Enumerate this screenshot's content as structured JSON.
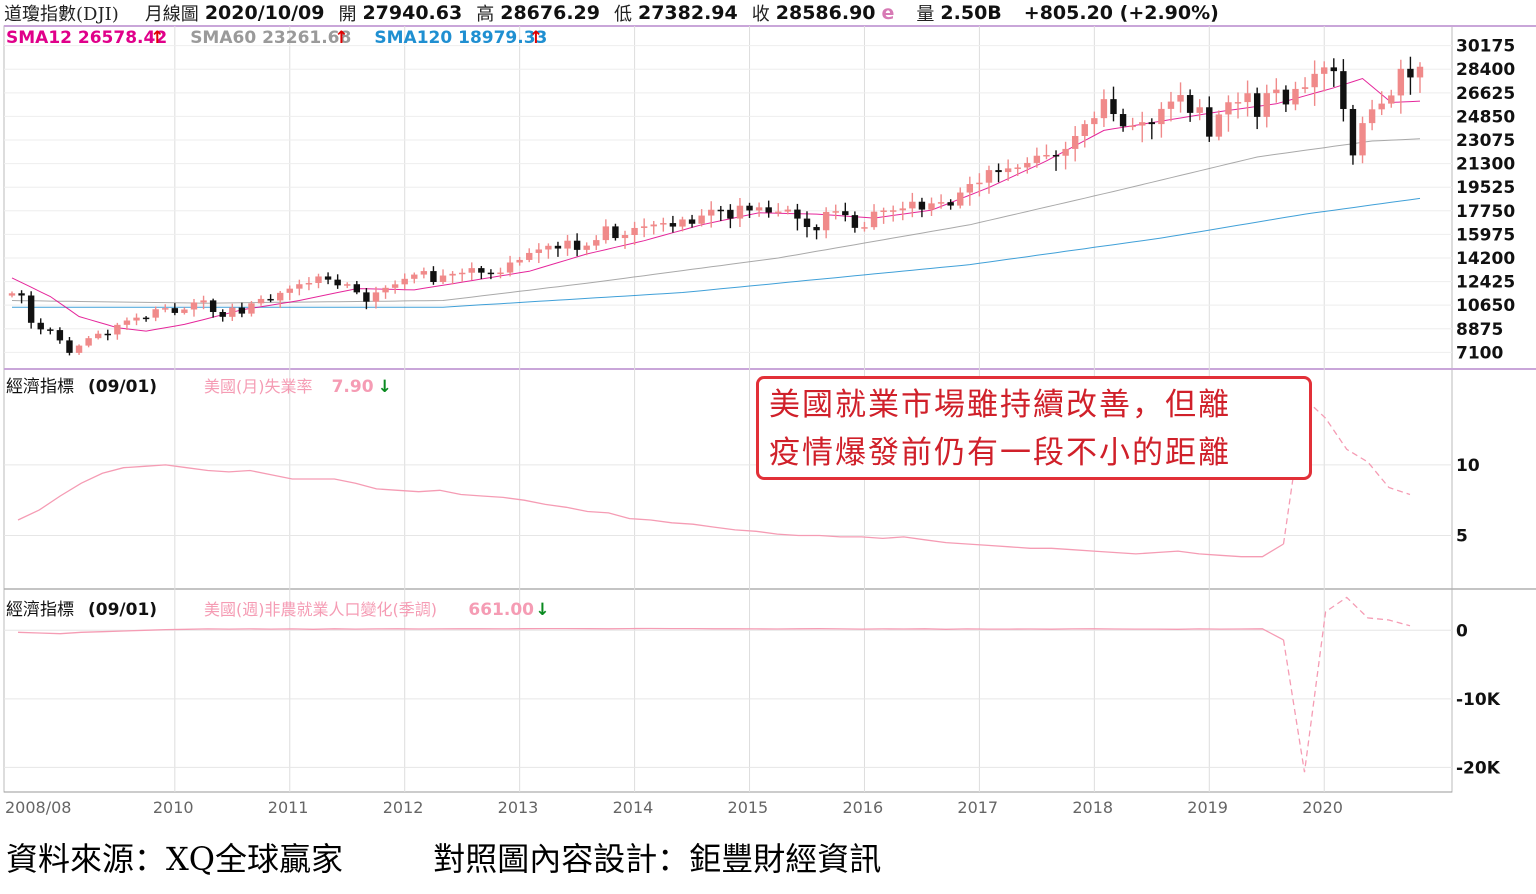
{
  "header": {
    "symbol": "道瓊指數(DJI)",
    "period": "月線圖",
    "date": "2020/10/09",
    "open_label": "開",
    "open": "27940.63",
    "high_label": "高",
    "high": "28676.29",
    "low_label": "低",
    "low": "27382.94",
    "close_label": "收",
    "close": "28586.90",
    "close_flag": "e",
    "volume_label": "量",
    "volume": "2.50B",
    "change": "+805.20 (+2.90%)"
  },
  "colors": {
    "sma12": "#e0008a",
    "sma60": "#9a9a9a",
    "sma120": "#1f8fd1",
    "candle_up": "#f08a8a",
    "candle_down": "#111111",
    "indicator": "#f59cb4",
    "note": "#e23038",
    "border": "#c9a6d9"
  },
  "chart_data": [
    {
      "type": "candlestick",
      "legend": [
        {
          "name": "SMA12",
          "value": "26578.42",
          "arrow": "↑",
          "color": "#e0008a"
        },
        {
          "name": "SMA60",
          "value": "23261.68",
          "arrow": "↑",
          "color": "#9a9a9a"
        },
        {
          "name": "SMA120",
          "value": "18979.33",
          "arrow": "↑",
          "color": "#1f8fd1"
        }
      ],
      "y_ticks": [
        "30175",
        "28400",
        "26625",
        "24850",
        "23075",
        "21300",
        "19525",
        "17750",
        "15975",
        "14200",
        "12425",
        "10650",
        "8875",
        "7100"
      ],
      "ylim": [
        6300,
        31200
      ],
      "x_ticks": [
        "2008/08",
        "2010",
        "2011",
        "2012",
        "2013",
        "2014",
        "2015",
        "2016",
        "2017",
        "2018",
        "2019",
        "2020"
      ],
      "grid": true,
      "closes": [
        11544,
        11378,
        9325,
        8829,
        8776,
        8001,
        7063,
        7609,
        8168,
        8500,
        8447,
        9171,
        9496,
        9713,
        9712,
        10344,
        10428,
        10067,
        10325,
        10857,
        11009,
        10137,
        9774,
        10466,
        10015,
        10788,
        11118,
        11006,
        11578,
        11892,
        12226,
        12320,
        12811,
        12570,
        12143,
        12226,
        11614,
        10913,
        11613,
        11955,
        12218,
        12632,
        12952,
        13214,
        12393,
        12880,
        13009,
        13091,
        13437,
        13096,
        13025,
        13104,
        13860,
        14054,
        14579,
        14840,
        15116,
        14910,
        15500,
        14810,
        15130,
        15546,
        16577,
        15699,
        15929,
        16458,
        16580,
        16717,
        16827,
        16563,
        17098,
        16774,
        17391,
        17828,
        17823,
        17165,
        18133,
        17776,
        18011,
        17620,
        17690,
        17840,
        17163,
        16528,
        16285,
        17664,
        17720,
        17425,
        16466,
        16517,
        17685,
        17774,
        17787,
        17930,
        18432,
        17841,
        18308,
        18400,
        18143,
        19124,
        19763,
        19864,
        20812,
        20663,
        20941,
        21009,
        21350,
        21891,
        21948,
        21891,
        22405,
        23377,
        24272,
        24719,
        26149,
        25029,
        24103,
        24163,
        24416,
        24271,
        25415,
        25965,
        26458,
        25116,
        25538,
        23327,
        24999,
        25916,
        25929,
        26593,
        24815,
        26600,
        26864,
        25751,
        26917,
        27046,
        28051,
        28538,
        28256,
        25409,
        21917,
        24346,
        25383,
        25813,
        26428,
        28430,
        27782,
        28586
      ],
      "sma12_anchors": [
        [
          0,
          12700
        ],
        [
          4,
          11300
        ],
        [
          7,
          9800
        ],
        [
          11,
          8950
        ],
        [
          14,
          8700
        ],
        [
          18,
          9200
        ],
        [
          24,
          10300
        ],
        [
          30,
          11000
        ],
        [
          36,
          11900
        ],
        [
          42,
          11800
        ],
        [
          48,
          12500
        ],
        [
          54,
          13200
        ],
        [
          60,
          14500
        ],
        [
          66,
          15500
        ],
        [
          72,
          16700
        ],
        [
          78,
          17600
        ],
        [
          84,
          17500
        ],
        [
          90,
          17200
        ],
        [
          96,
          17800
        ],
        [
          102,
          19500
        ],
        [
          108,
          21500
        ],
        [
          114,
          23800
        ],
        [
          120,
          24500
        ],
        [
          126,
          25200
        ],
        [
          132,
          25800
        ],
        [
          138,
          27000
        ],
        [
          141,
          27700
        ],
        [
          144,
          25900
        ],
        [
          147,
          26000
        ],
        [
          149,
          26400
        ],
        [
          150,
          26578
        ]
      ],
      "sma60_anchors": [
        [
          0,
          11000
        ],
        [
          20,
          10800
        ],
        [
          45,
          11000
        ],
        [
          60,
          12300
        ],
        [
          80,
          14200
        ],
        [
          100,
          16700
        ],
        [
          115,
          19200
        ],
        [
          130,
          21800
        ],
        [
          142,
          23000
        ],
        [
          150,
          23262
        ]
      ],
      "sma120_anchors": [
        [
          0,
          10500
        ],
        [
          45,
          10500
        ],
        [
          70,
          11600
        ],
        [
          100,
          13700
        ],
        [
          120,
          15700
        ],
        [
          135,
          17500
        ],
        [
          150,
          18979
        ]
      ]
    },
    {
      "type": "line",
      "panel_label": "經濟指標",
      "date": "(09/01)",
      "series_name": "美國(月)失業率",
      "last_value": "7.90",
      "arrow": "↓",
      "y_ticks": [
        "10",
        "5"
      ],
      "ylim": [
        1.5,
        16.5
      ],
      "values": [
        6.1,
        6.8,
        7.8,
        8.7,
        9.4,
        9.8,
        9.9,
        10.0,
        9.8,
        9.6,
        9.5,
        9.6,
        9.3,
        9.0,
        9.0,
        9.0,
        8.7,
        8.3,
        8.2,
        8.1,
        8.2,
        7.9,
        7.8,
        7.7,
        7.5,
        7.2,
        7.0,
        6.7,
        6.6,
        6.2,
        6.1,
        5.9,
        5.8,
        5.6,
        5.4,
        5.3,
        5.1,
        5.0,
        5.0,
        4.9,
        4.9,
        4.8,
        4.9,
        4.7,
        4.5,
        4.4,
        4.3,
        4.2,
        4.1,
        4.1,
        4.0,
        3.9,
        3.8,
        3.7,
        3.8,
        3.9,
        3.7,
        3.6,
        3.5,
        3.5,
        4.4,
        14.7,
        13.3,
        11.1,
        10.2,
        8.4,
        7.9
      ]
    },
    {
      "type": "line",
      "panel_label": "經濟指標",
      "date": "(09/01)",
      "series_name": "美國(週)非農就業人口變化(季調)",
      "last_value": "661.00",
      "arrow": "↓",
      "y_ticks": [
        "0",
        "-10K",
        "-20K"
      ],
      "ylim": [
        -23000,
        5000
      ],
      "values": [
        -300,
        -400,
        -500,
        -300,
        -200,
        -100,
        0,
        100,
        150,
        200,
        180,
        200,
        180,
        200,
        150,
        220,
        180,
        200,
        210,
        190,
        200,
        210,
        220,
        200,
        230,
        250,
        240,
        230,
        220,
        240,
        260,
        250,
        240,
        220,
        210,
        200,
        190,
        220,
        230,
        200,
        180,
        200,
        190,
        210,
        150,
        200,
        180,
        170,
        190,
        160,
        200,
        210,
        190,
        180,
        170,
        150,
        200,
        180,
        190,
        220,
        -1400,
        -20700,
        2700,
        4800,
        1800,
        1500,
        661
      ]
    }
  ],
  "note": {
    "line1": "美國就業市場雖持續改善，但離",
    "line2": "疫情爆發前仍有一段不小的距離"
  },
  "footer": {
    "source": "資料來源：XQ全球贏家",
    "design": "對照圖內容設計：鉅豐財經資訊"
  }
}
